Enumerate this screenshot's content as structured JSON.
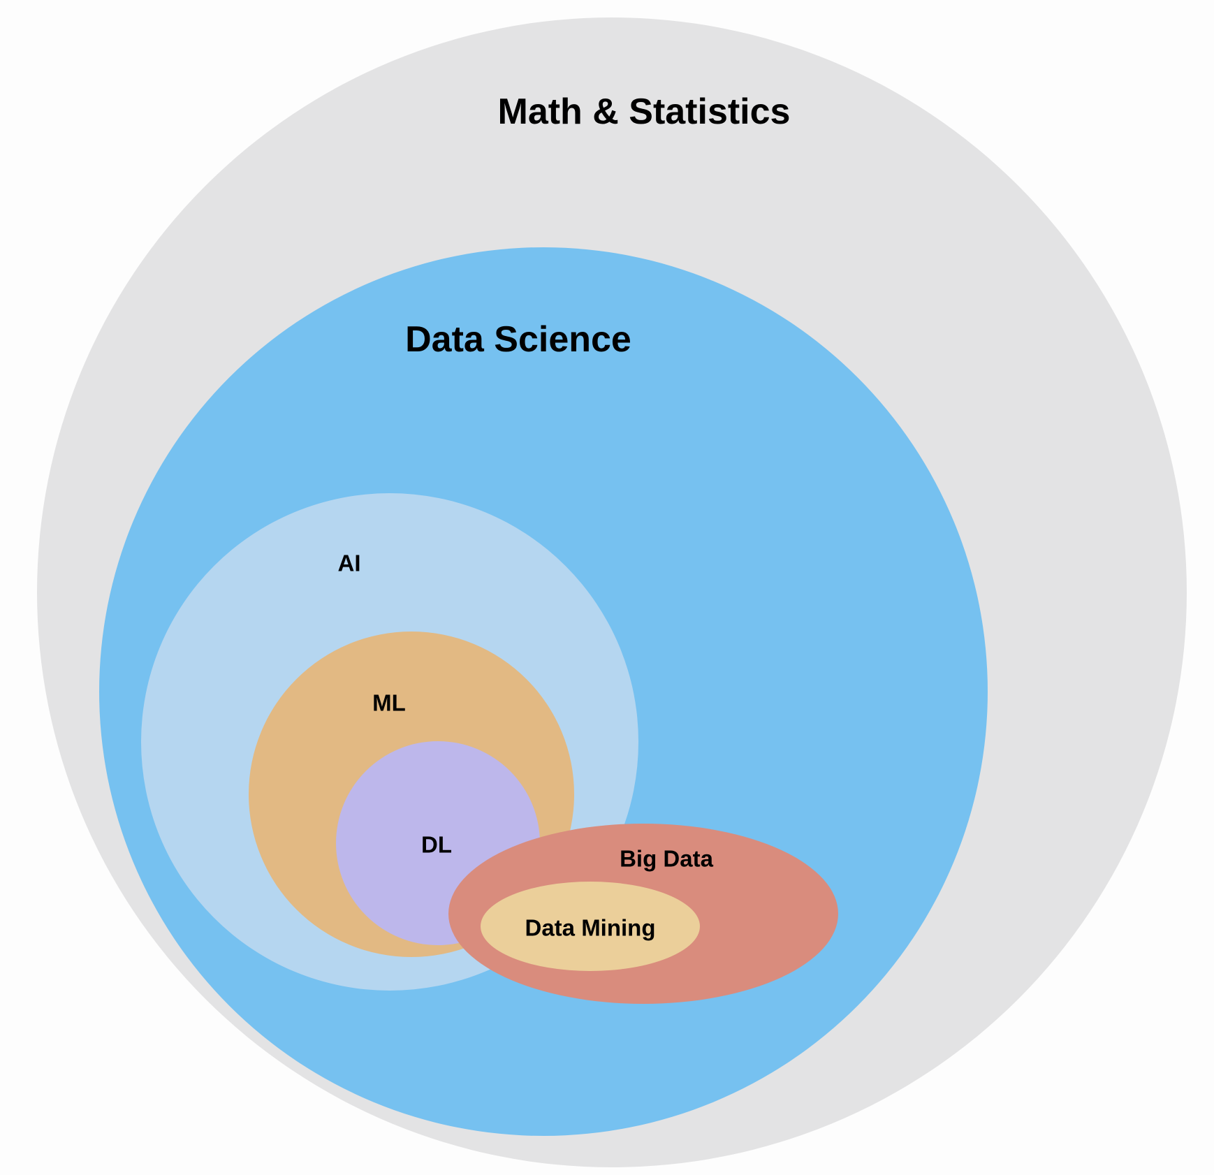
{
  "diagram": {
    "type": "nested-euler",
    "background": "#fdfdfd",
    "regions": {
      "math_statistics": {
        "label": "Math & Statistics",
        "color": "#e3e3e4"
      },
      "data_science": {
        "label": "Data Science",
        "color": "#76c1f0"
      },
      "ai": {
        "label": "AI",
        "color": "#b5d6f0"
      },
      "ml": {
        "label": "ML",
        "color": "#e2b983"
      },
      "dl": {
        "label": "DL",
        "color": "#bdb7eb"
      },
      "big_data": {
        "label": "Big Data",
        "color": "#d98c7d"
      },
      "data_mining": {
        "label": "Data Mining",
        "color": "#ebcf9a"
      }
    }
  }
}
